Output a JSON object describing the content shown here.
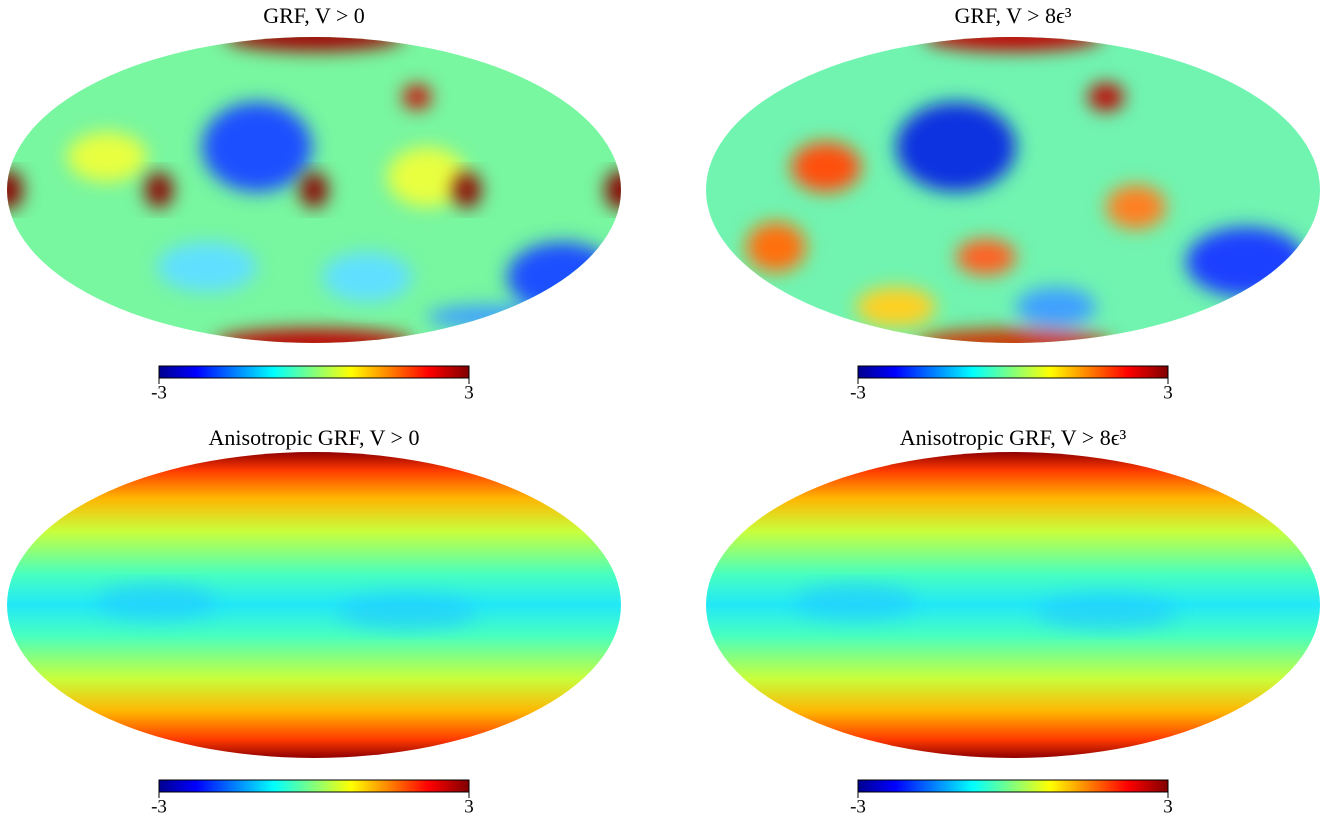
{
  "chart_data": [
    {
      "type": "map",
      "title": "GRF, V > 0",
      "clim": [
        -3,
        3
      ],
      "cticks": [
        -3,
        3
      ]
    },
    {
      "type": "map",
      "title": "GRF, V > 8ϵ³",
      "clim": [
        -3,
        3
      ],
      "cticks": [
        -3,
        3
      ]
    },
    {
      "type": "map",
      "title": "Anisotropic GRF, V > 0",
      "clim": [
        -3,
        3
      ],
      "cticks": [
        -3,
        3
      ]
    },
    {
      "type": "map",
      "title": "Anisotropic GRF, V > 8ϵ³",
      "clim": [
        -3,
        3
      ],
      "cticks": [
        -3,
        3
      ]
    }
  ]
}
